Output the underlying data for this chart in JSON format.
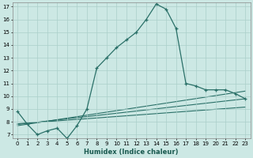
{
  "xlabel": "Humidex (Indice chaleur)",
  "ylabel": "",
  "bg_color": "#cce8e4",
  "grid_color": "#aacfca",
  "line_color": "#2a7068",
  "xlim": [
    -0.5,
    23.5
  ],
  "ylim": [
    6.7,
    17.3
  ],
  "xticks": [
    0,
    1,
    2,
    3,
    4,
    5,
    6,
    7,
    8,
    9,
    10,
    11,
    12,
    13,
    14,
    15,
    16,
    17,
    18,
    19,
    20,
    21,
    22,
    23
  ],
  "yticks": [
    7,
    8,
    9,
    10,
    11,
    12,
    13,
    14,
    15,
    16,
    17
  ],
  "main_line_x": [
    0,
    1,
    2,
    3,
    4,
    5,
    6,
    7,
    8,
    9,
    10,
    11,
    12,
    13,
    14,
    15,
    16,
    17,
    18,
    19,
    20,
    21,
    22,
    23
  ],
  "main_line_y": [
    8.8,
    7.8,
    7.0,
    7.3,
    7.5,
    6.7,
    7.7,
    9.0,
    12.2,
    13.0,
    13.8,
    14.4,
    15.0,
    16.0,
    17.2,
    16.8,
    15.3,
    11.0,
    10.8,
    10.5,
    10.5,
    10.5,
    10.2,
    9.8
  ],
  "flat_line1_x": [
    0,
    23
  ],
  "flat_line1_y": [
    7.7,
    10.4
  ],
  "flat_line2_x": [
    0,
    23
  ],
  "flat_line2_y": [
    7.8,
    9.8
  ],
  "flat_line3_x": [
    0,
    23
  ],
  "flat_line3_y": [
    7.85,
    9.15
  ]
}
